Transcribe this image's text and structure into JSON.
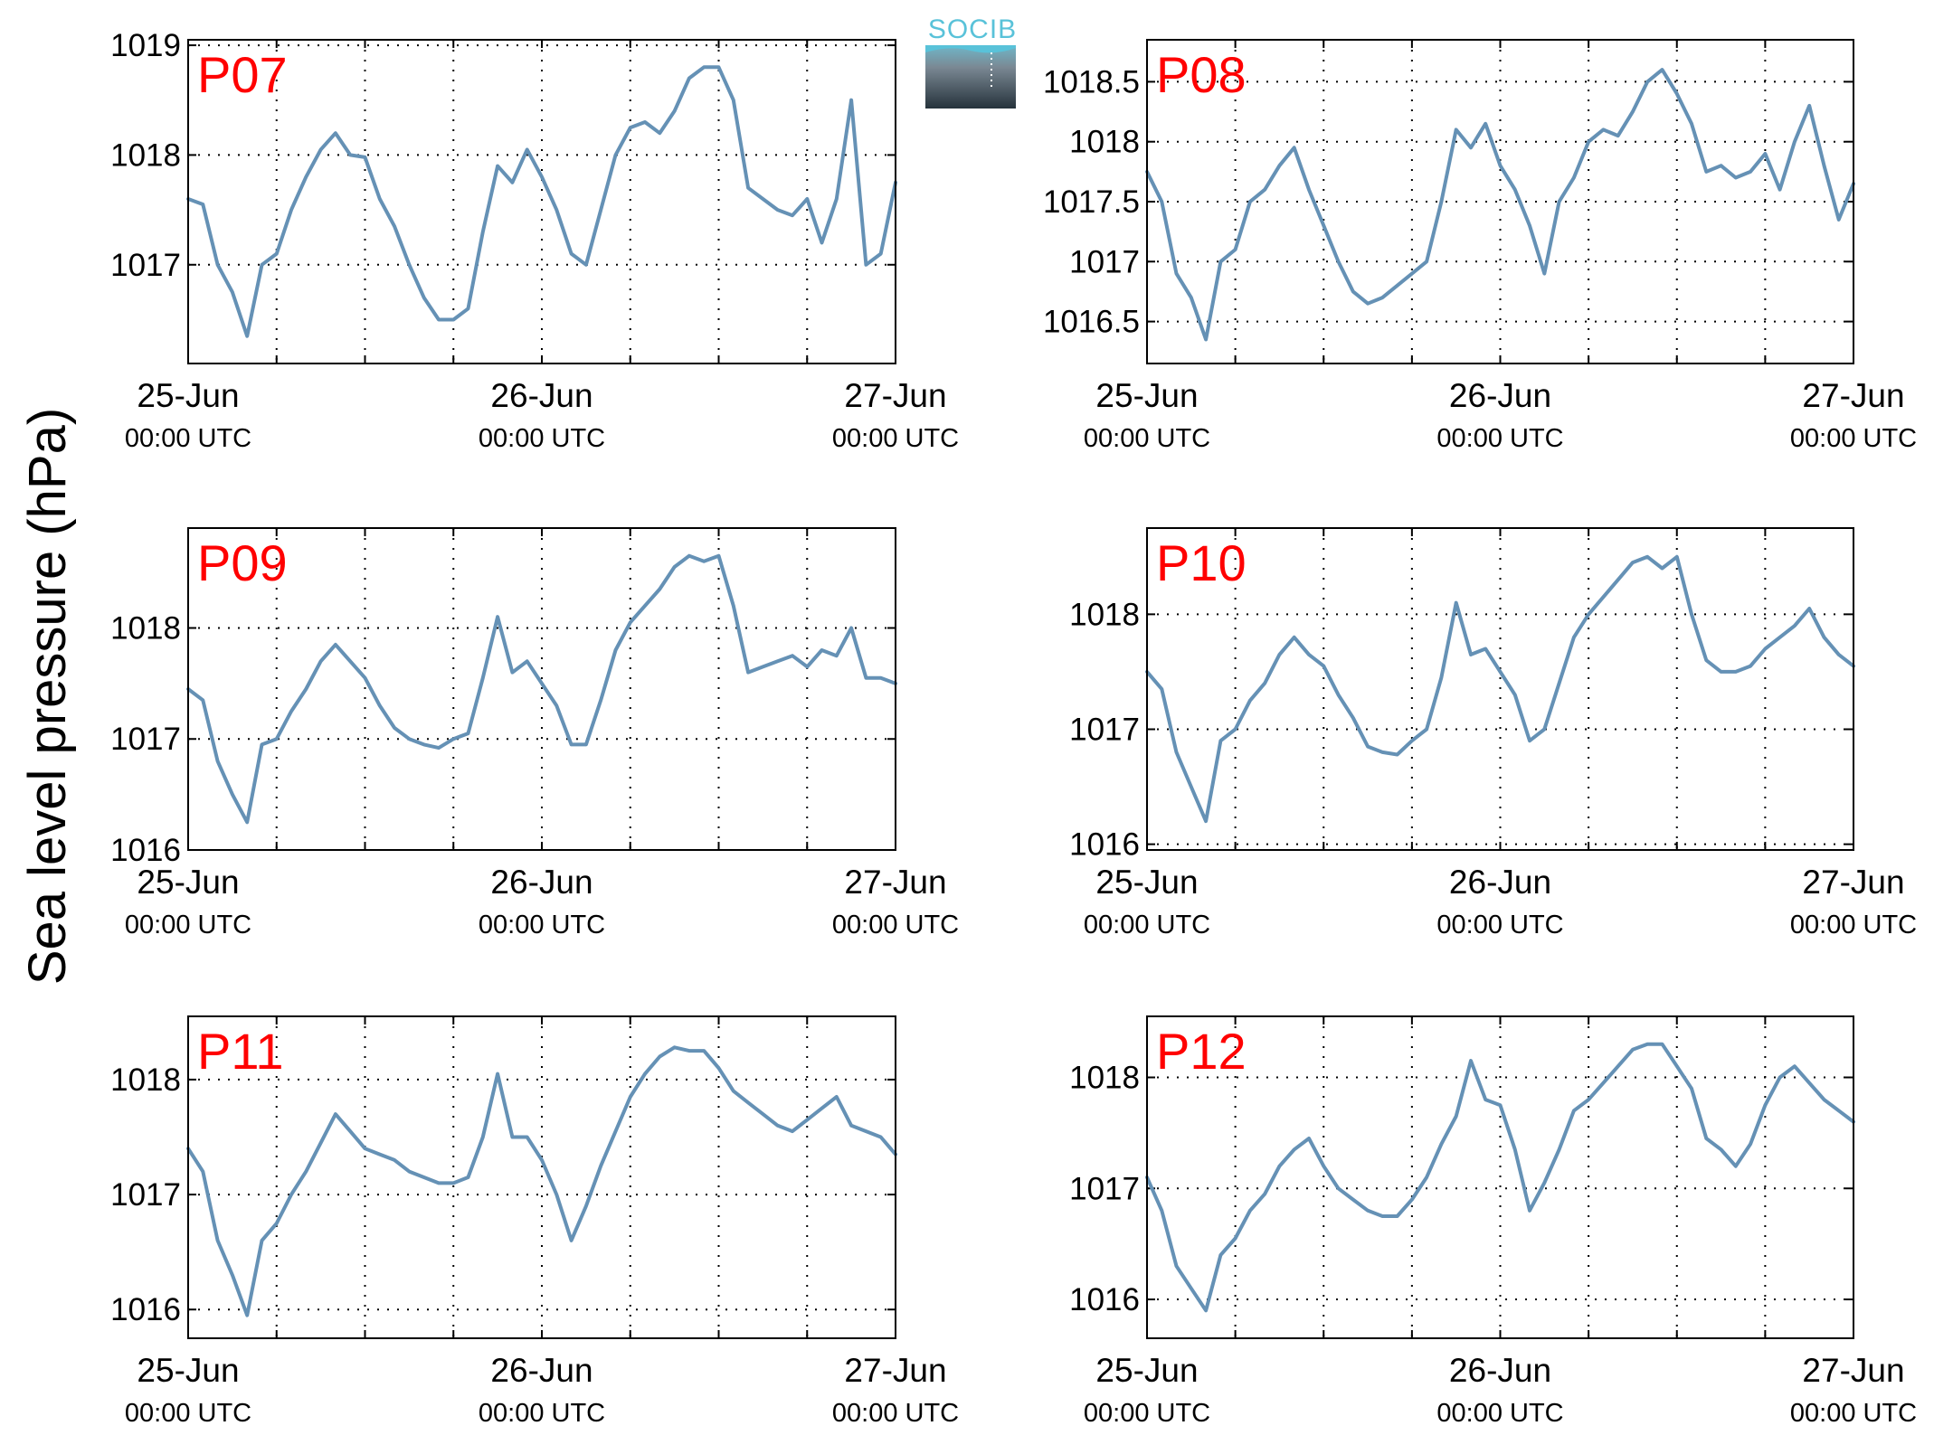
{
  "figure": {
    "ylabel": "Sea level pressure (hPa)",
    "logo_text": "SOCIB",
    "line_color": "#6591b5",
    "label_color": "#ff0000"
  },
  "chart_data": [
    {
      "type": "line",
      "label": "P07",
      "ylim": [
        1016.1,
        1019.05
      ],
      "yticks": [
        "1017",
        "1018",
        "1019"
      ],
      "xticks": [
        {
          "main": "25-Jun",
          "sub": "00:00 UTC"
        },
        {
          "main": "26-Jun",
          "sub": "00:00 UTC"
        },
        {
          "main": "27-Jun",
          "sub": "00:00 UTC"
        }
      ],
      "grid": true,
      "series": [
        {
          "x": [
            0,
            1,
            2,
            3,
            4,
            5,
            6,
            7,
            8,
            9,
            10,
            11,
            12,
            13,
            14,
            15,
            16,
            17,
            18,
            19,
            20,
            21,
            22,
            23,
            24,
            25,
            26,
            27,
            28,
            29,
            30,
            31,
            32,
            33,
            34,
            35,
            36,
            37,
            38,
            39,
            40,
            41,
            42,
            43,
            44,
            45,
            46,
            47,
            48
          ],
          "values": [
            1017.6,
            1017.55,
            1017.0,
            1016.75,
            1016.35,
            1017.0,
            1017.1,
            1017.5,
            1017.8,
            1018.05,
            1018.2,
            1018.0,
            1017.98,
            1017.6,
            1017.35,
            1017.0,
            1016.7,
            1016.5,
            1016.5,
            1016.6,
            1017.3,
            1017.9,
            1017.75,
            1018.05,
            1017.8,
            1017.5,
            1017.1,
            1017.0,
            1017.5,
            1018.0,
            1018.25,
            1018.3,
            1018.2,
            1018.4,
            1018.7,
            1018.8,
            1018.8,
            1018.5,
            1017.7,
            1017.6,
            1017.5,
            1017.45,
            1017.6,
            1017.2,
            1017.6,
            1018.5,
            1017.0,
            1017.1,
            1017.75
          ]
        }
      ]
    },
    {
      "type": "line",
      "label": "P08",
      "ylim": [
        1016.15,
        1018.85
      ],
      "yticks": [
        "1016.5",
        "1017",
        "1017.5",
        "1018",
        "1018.5"
      ],
      "xticks": [
        {
          "main": "25-Jun",
          "sub": "00:00 UTC"
        },
        {
          "main": "26-Jun",
          "sub": "00:00 UTC"
        },
        {
          "main": "27-Jun",
          "sub": "00:00 UTC"
        }
      ],
      "grid": true,
      "series": [
        {
          "x": [
            0,
            1,
            2,
            3,
            4,
            5,
            6,
            7,
            8,
            9,
            10,
            11,
            12,
            13,
            14,
            15,
            16,
            17,
            18,
            19,
            20,
            21,
            22,
            23,
            24,
            25,
            26,
            27,
            28,
            29,
            30,
            31,
            32,
            33,
            34,
            35,
            36,
            37,
            38,
            39,
            40,
            41,
            42,
            43,
            44,
            45,
            46,
            47,
            48
          ],
          "values": [
            1017.75,
            1017.5,
            1016.9,
            1016.7,
            1016.35,
            1017.0,
            1017.1,
            1017.5,
            1017.6,
            1017.8,
            1017.95,
            1017.6,
            1017.3,
            1017.0,
            1016.75,
            1016.65,
            1016.7,
            1016.8,
            1016.9,
            1017.0,
            1017.5,
            1018.1,
            1017.95,
            1018.15,
            1017.8,
            1017.6,
            1017.3,
            1016.9,
            1017.5,
            1017.7,
            1018.0,
            1018.1,
            1018.05,
            1018.25,
            1018.5,
            1018.6,
            1018.4,
            1018.15,
            1017.75,
            1017.8,
            1017.7,
            1017.75,
            1017.9,
            1017.6,
            1018.0,
            1018.3,
            1017.8,
            1017.35,
            1017.65
          ]
        }
      ]
    },
    {
      "type": "line",
      "label": "P09",
      "ylim": [
        1016.0,
        1018.9
      ],
      "yticks": [
        "1016",
        "1017",
        "1018"
      ],
      "xticks": [
        {
          "main": "25-Jun",
          "sub": "00:00 UTC"
        },
        {
          "main": "26-Jun",
          "sub": "00:00 UTC"
        },
        {
          "main": "27-Jun",
          "sub": "00:00 UTC"
        }
      ],
      "grid": true,
      "series": [
        {
          "x": [
            0,
            1,
            2,
            3,
            4,
            5,
            6,
            7,
            8,
            9,
            10,
            11,
            12,
            13,
            14,
            15,
            16,
            17,
            18,
            19,
            20,
            21,
            22,
            23,
            24,
            25,
            26,
            27,
            28,
            29,
            30,
            31,
            32,
            33,
            34,
            35,
            36,
            37,
            38,
            39,
            40,
            41,
            42,
            43,
            44,
            45,
            46,
            47,
            48
          ],
          "values": [
            1017.45,
            1017.35,
            1016.8,
            1016.5,
            1016.25,
            1016.95,
            1017.0,
            1017.25,
            1017.45,
            1017.7,
            1017.85,
            1017.7,
            1017.55,
            1017.3,
            1017.1,
            1017.0,
            1016.95,
            1016.92,
            1017.0,
            1017.05,
            1017.55,
            1018.1,
            1017.6,
            1017.7,
            1017.5,
            1017.3,
            1016.95,
            1016.95,
            1017.35,
            1017.8,
            1018.05,
            1018.2,
            1018.35,
            1018.55,
            1018.65,
            1018.6,
            1018.65,
            1018.2,
            1017.6,
            1017.65,
            1017.7,
            1017.75,
            1017.65,
            1017.8,
            1017.75,
            1018.0,
            1017.55,
            1017.55,
            1017.5
          ]
        }
      ]
    },
    {
      "type": "line",
      "label": "P10",
      "ylim": [
        1015.95,
        1018.75
      ],
      "yticks": [
        "1016",
        "1017",
        "1018"
      ],
      "xticks": [
        {
          "main": "25-Jun",
          "sub": "00:00 UTC"
        },
        {
          "main": "26-Jun",
          "sub": "00:00 UTC"
        },
        {
          "main": "27-Jun",
          "sub": "00:00 UTC"
        }
      ],
      "grid": true,
      "series": [
        {
          "x": [
            0,
            1,
            2,
            3,
            4,
            5,
            6,
            7,
            8,
            9,
            10,
            11,
            12,
            13,
            14,
            15,
            16,
            17,
            18,
            19,
            20,
            21,
            22,
            23,
            24,
            25,
            26,
            27,
            28,
            29,
            30,
            31,
            32,
            33,
            34,
            35,
            36,
            37,
            38,
            39,
            40,
            41,
            42,
            43,
            44,
            45,
            46,
            47,
            48
          ],
          "values": [
            1017.5,
            1017.35,
            1016.8,
            1016.5,
            1016.2,
            1016.9,
            1017.0,
            1017.25,
            1017.4,
            1017.65,
            1017.8,
            1017.65,
            1017.55,
            1017.3,
            1017.1,
            1016.85,
            1016.8,
            1016.78,
            1016.9,
            1017.0,
            1017.45,
            1018.1,
            1017.65,
            1017.7,
            1017.5,
            1017.3,
            1016.9,
            1017.0,
            1017.4,
            1017.8,
            1018.0,
            1018.15,
            1018.3,
            1018.45,
            1018.5,
            1018.4,
            1018.5,
            1018.0,
            1017.6,
            1017.5,
            1017.5,
            1017.55,
            1017.7,
            1017.8,
            1017.9,
            1018.05,
            1017.8,
            1017.65,
            1017.55
          ]
        }
      ]
    },
    {
      "type": "line",
      "label": "P11",
      "ylim": [
        1015.75,
        1018.55
      ],
      "yticks": [
        "1016",
        "1017",
        "1018"
      ],
      "xticks": [
        {
          "main": "25-Jun",
          "sub": "00:00 UTC"
        },
        {
          "main": "26-Jun",
          "sub": "00:00 UTC"
        },
        {
          "main": "27-Jun",
          "sub": "00:00 UTC"
        }
      ],
      "grid": true,
      "series": [
        {
          "x": [
            0,
            1,
            2,
            3,
            4,
            5,
            6,
            7,
            8,
            9,
            10,
            11,
            12,
            13,
            14,
            15,
            16,
            17,
            18,
            19,
            20,
            21,
            22,
            23,
            24,
            25,
            26,
            27,
            28,
            29,
            30,
            31,
            32,
            33,
            34,
            35,
            36,
            37,
            38,
            39,
            40,
            41,
            42,
            43,
            44,
            45,
            46,
            47,
            48
          ],
          "values": [
            1017.4,
            1017.2,
            1016.6,
            1016.3,
            1015.95,
            1016.6,
            1016.75,
            1017.0,
            1017.2,
            1017.45,
            1017.7,
            1017.55,
            1017.4,
            1017.35,
            1017.3,
            1017.2,
            1017.15,
            1017.1,
            1017.1,
            1017.15,
            1017.5,
            1018.05,
            1017.5,
            1017.5,
            1017.3,
            1017.0,
            1016.6,
            1016.9,
            1017.25,
            1017.55,
            1017.85,
            1018.05,
            1018.2,
            1018.28,
            1018.25,
            1018.25,
            1018.1,
            1017.9,
            1017.8,
            1017.7,
            1017.6,
            1017.55,
            1017.65,
            1017.75,
            1017.85,
            1017.6,
            1017.55,
            1017.5,
            1017.35
          ]
        }
      ]
    },
    {
      "type": "line",
      "label": "P12",
      "ylim": [
        1015.65,
        1018.55
      ],
      "yticks": [
        "1016",
        "1017",
        "1018"
      ],
      "xticks": [
        {
          "main": "25-Jun",
          "sub": "00:00 UTC"
        },
        {
          "main": "26-Jun",
          "sub": "00:00 UTC"
        },
        {
          "main": "27-Jun",
          "sub": "00:00 UTC"
        }
      ],
      "grid": true,
      "series": [
        {
          "x": [
            0,
            1,
            2,
            3,
            4,
            5,
            6,
            7,
            8,
            9,
            10,
            11,
            12,
            13,
            14,
            15,
            16,
            17,
            18,
            19,
            20,
            21,
            22,
            23,
            24,
            25,
            26,
            27,
            28,
            29,
            30,
            31,
            32,
            33,
            34,
            35,
            36,
            37,
            38,
            39,
            40,
            41,
            42,
            43,
            44,
            45,
            46,
            47,
            48
          ],
          "values": [
            1017.1,
            1016.8,
            1016.3,
            1016.1,
            1015.9,
            1016.4,
            1016.55,
            1016.8,
            1016.95,
            1017.2,
            1017.35,
            1017.45,
            1017.2,
            1017.0,
            1016.9,
            1016.8,
            1016.75,
            1016.75,
            1016.9,
            1017.1,
            1017.4,
            1017.65,
            1018.15,
            1017.8,
            1017.75,
            1017.35,
            1016.8,
            1017.05,
            1017.35,
            1017.7,
            1017.8,
            1017.95,
            1018.1,
            1018.25,
            1018.3,
            1018.3,
            1018.1,
            1017.9,
            1017.45,
            1017.35,
            1017.2,
            1017.4,
            1017.75,
            1018.0,
            1018.1,
            1017.95,
            1017.8,
            1017.7,
            1017.6
          ]
        }
      ]
    }
  ]
}
